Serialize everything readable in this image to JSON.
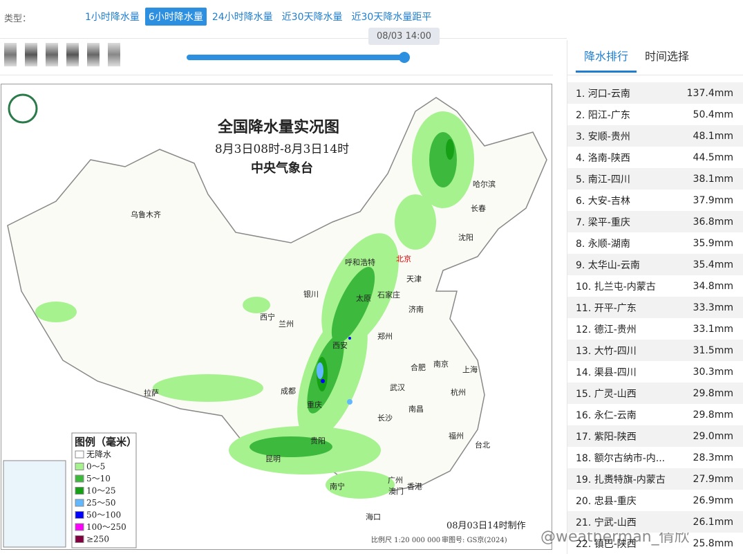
{
  "filter": {
    "label": "类型：",
    "tabs": [
      "1小时降水量",
      "6小时降水量",
      "24小时降水量",
      "近30天降水量",
      "近30天降水量距平"
    ],
    "active": 1
  },
  "slider": {
    "tooltip": "08/03 14:00"
  },
  "map": {
    "title": "全国降水量实况图",
    "subtitle": "8月3日08时-8月3日14时",
    "agency": "中央气象台",
    "legend_title": "图例（毫米）",
    "legend": [
      {
        "label": "无降水",
        "color": "#ffffff"
      },
      {
        "label": "0～5",
        "color": "#a6f28f"
      },
      {
        "label": "5～10",
        "color": "#3dba3d"
      },
      {
        "label": "10～25",
        "color": "#16a016"
      },
      {
        "label": "25～50",
        "color": "#61b8ff"
      },
      {
        "label": "50～100",
        "color": "#0000fe"
      },
      {
        "label": "100～250",
        "color": "#fa00fa"
      },
      {
        "label": "≥250",
        "color": "#800040"
      }
    ],
    "cities": [
      "乌鲁木齐",
      "哈尔滨",
      "长春",
      "沈阳",
      "呼和浩特",
      "北京",
      "天津",
      "银川",
      "太原",
      "石家庄",
      "济南",
      "西宁",
      "兰州",
      "西安",
      "郑州",
      "合肥",
      "南京",
      "上海",
      "杭州",
      "拉萨",
      "成都",
      "重庆",
      "武汉",
      "长沙",
      "南昌",
      "福州",
      "台北",
      "贵阳",
      "昆明",
      "南宁",
      "广州",
      "澳门",
      "香港",
      "海口"
    ],
    "made": "08月03日14时制作",
    "scale": "比例尺 1:20 000 000",
    "review": "审图号: GS京(2024)"
  },
  "panel": {
    "tabs": [
      "降水排行",
      "时间选择"
    ],
    "active": 0,
    "rows": [
      {
        "label": "1. 河口-云南",
        "value": "137.4mm"
      },
      {
        "label": "2. 阳江-广东",
        "value": "50.4mm"
      },
      {
        "label": "3. 安顺-贵州",
        "value": "48.1mm"
      },
      {
        "label": "4. 洛南-陕西",
        "value": "44.5mm"
      },
      {
        "label": "5. 南江-四川",
        "value": "38.1mm"
      },
      {
        "label": "6. 大安-吉林",
        "value": "37.9mm"
      },
      {
        "label": "7. 梁平-重庆",
        "value": "36.8mm"
      },
      {
        "label": "8. 永顺-湖南",
        "value": "35.9mm"
      },
      {
        "label": "9. 太华山-云南",
        "value": "35.4mm"
      },
      {
        "label": "10. 扎兰屯-内蒙古",
        "value": "34.8mm"
      },
      {
        "label": "11. 开平-广东",
        "value": "33.3mm"
      },
      {
        "label": "12. 德江-贵州",
        "value": "33.1mm"
      },
      {
        "label": "13. 大竹-四川",
        "value": "31.5mm"
      },
      {
        "label": "14. 渠县-四川",
        "value": "30.3mm"
      },
      {
        "label": "15. 广灵-山西",
        "value": "29.8mm"
      },
      {
        "label": "16. 永仁-云南",
        "value": "29.8mm"
      },
      {
        "label": "17. 紫阳-陕西",
        "value": "29.0mm"
      },
      {
        "label": "18. 额尔古纳市-内...",
        "value": "28.3mm"
      },
      {
        "label": "19. 扎赉特旗-内蒙古",
        "value": "27.9mm"
      },
      {
        "label": "20. 忠县-重庆",
        "value": "26.9mm"
      },
      {
        "label": "21. 宁武-山西",
        "value": "26.1mm"
      },
      {
        "label": "22. 镇巴-陕西",
        "value": "25.8mm"
      }
    ]
  },
  "watermark": "@weatherman_倩欣"
}
